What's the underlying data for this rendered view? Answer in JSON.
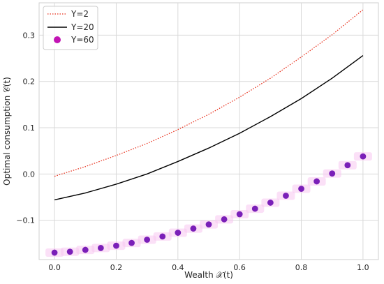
{
  "chart_data": {
    "type": "line",
    "xlabel": "Wealth 𝒳(t)",
    "ylabel": "Optimal consumption 𝒞(t)",
    "xlim": [
      -0.05,
      1.05
    ],
    "ylim": [
      -0.185,
      0.37
    ],
    "xticks": [
      "0.0",
      "0.2",
      "0.4",
      "0.6",
      "0.8",
      "1.0"
    ],
    "yticks": [
      "−0.1",
      "0.0",
      "0.1",
      "0.2",
      "0.3"
    ],
    "xtick_values": [
      0.0,
      0.2,
      0.4,
      0.6,
      0.8,
      1.0
    ],
    "ytick_values": [
      -0.1,
      0.0,
      0.1,
      0.2,
      0.3
    ],
    "grid": true,
    "legend_position": "top-left",
    "series": [
      {
        "name": "Y=2",
        "style": "dotted-line",
        "color": "#e8321e",
        "x": [
          0.0,
          0.1,
          0.2,
          0.3,
          0.4,
          0.5,
          0.6,
          0.7,
          0.8,
          0.9,
          1.0
        ],
        "y": [
          -0.005,
          0.016,
          0.04,
          0.066,
          0.096,
          0.129,
          0.166,
          0.207,
          0.253,
          0.301,
          0.355
        ]
      },
      {
        "name": "Y=20",
        "style": "solid-line",
        "color": "#000000",
        "x": [
          0.0,
          0.1,
          0.2,
          0.3,
          0.4,
          0.5,
          0.6,
          0.7,
          0.8,
          0.9,
          1.0
        ],
        "y": [
          -0.056,
          -0.041,
          -0.022,
          0.0,
          0.027,
          0.056,
          0.088,
          0.124,
          0.163,
          0.207,
          0.256
        ]
      },
      {
        "name": "Y=60",
        "style": "markers",
        "color": "#7a1fb8",
        "band_color": "#f7c6f0",
        "x": [
          0.0,
          0.05,
          0.1,
          0.15,
          0.2,
          0.25,
          0.3,
          0.35,
          0.4,
          0.45,
          0.5,
          0.55,
          0.6,
          0.65,
          0.7,
          0.75,
          0.8,
          0.85,
          0.9,
          0.95,
          1.0
        ],
        "y": [
          -0.17,
          -0.168,
          -0.164,
          -0.16,
          -0.155,
          -0.149,
          -0.142,
          -0.135,
          -0.127,
          -0.118,
          -0.109,
          -0.098,
          -0.087,
          -0.075,
          -0.062,
          -0.047,
          -0.032,
          -0.016,
          0.001,
          0.019,
          0.038
        ]
      }
    ]
  }
}
